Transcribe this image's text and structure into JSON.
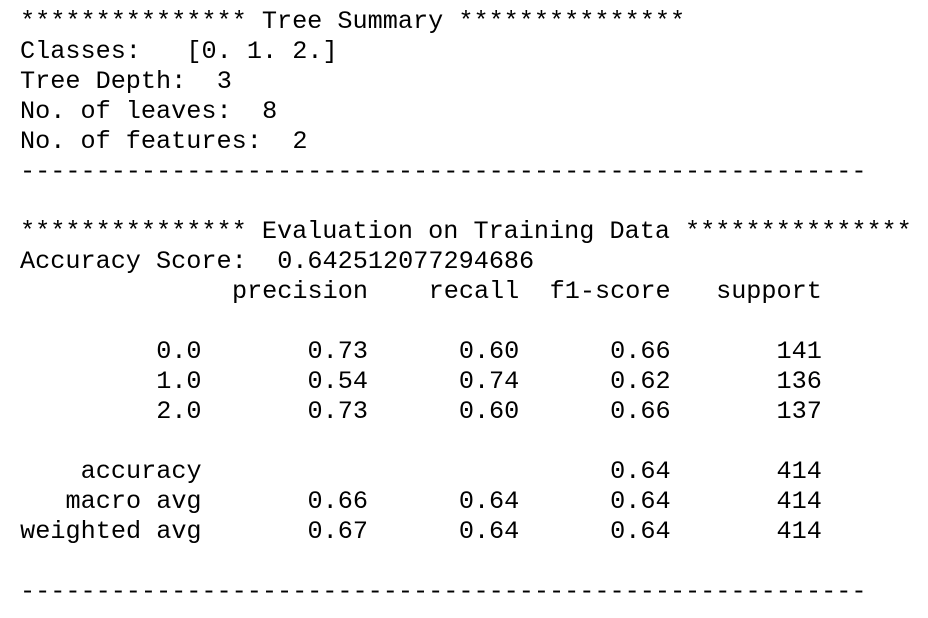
{
  "summary": {
    "title": "*************** Tree Summary ***************",
    "items": [
      {
        "label": "Classes:",
        "value": "[0. 1. 2.]"
      },
      {
        "label": "Tree Depth:",
        "value": 3
      },
      {
        "label": "No. of leaves:",
        "value": 8
      },
      {
        "label": "No. of features:",
        "value": 2
      }
    ],
    "rule": "--------------------------------------------------------"
  },
  "evaluation": {
    "title": "*************** Evaluation on Training Data ***************",
    "accuracy_label": "Accuracy Score:",
    "accuracy_value": "0.642512077294686",
    "report": {
      "columns": [
        "precision",
        "recall",
        "f1-score",
        "support"
      ],
      "rows": [
        {
          "label": "0.0",
          "precision": "0.73",
          "recall": "0.60",
          "f1-score": "0.66",
          "support": 141
        },
        {
          "label": "1.0",
          "precision": "0.54",
          "recall": "0.74",
          "f1-score": "0.62",
          "support": 136
        },
        {
          "label": "2.0",
          "precision": "0.73",
          "recall": "0.60",
          "f1-score": "0.66",
          "support": 137
        },
        {
          "label": "accuracy",
          "f1-score": "0.64",
          "support": 414
        },
        {
          "label": "macro avg",
          "precision": "0.66",
          "recall": "0.64",
          "f1-score": "0.64",
          "support": 414
        },
        {
          "label": "weighted avg",
          "precision": "0.67",
          "recall": "0.64",
          "f1-score": "0.64",
          "support": 414
        }
      ]
    },
    "rule": "--------------------------------------------------------"
  }
}
